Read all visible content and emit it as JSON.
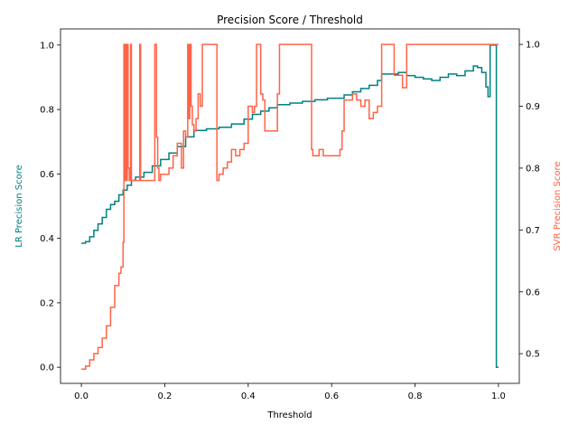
{
  "chart_data": {
    "type": "line",
    "title": "Precision Score / Threshold",
    "xlabel": "Threshold",
    "ylabel_left": "LR Precision Score",
    "ylabel_right": "SVR Precision Score",
    "xlim": [
      -0.05,
      1.05
    ],
    "ylim_left": [
      -0.05,
      1.05
    ],
    "ylim_right": [
      0.452,
      1.025
    ],
    "x_ticks": [
      0.0,
      0.2,
      0.4,
      0.6,
      0.8,
      1.0
    ],
    "y_ticks_left": [
      0.0,
      0.2,
      0.4,
      0.6,
      0.8,
      1.0
    ],
    "y_ticks_right": [
      0.5,
      0.6,
      0.7,
      0.8,
      0.9,
      1.0
    ],
    "grid": false,
    "legend": "none",
    "series": [
      {
        "axis": "left",
        "color": "#008080",
        "x": [
          0.0,
          0.01,
          0.02,
          0.03,
          0.04,
          0.05,
          0.06,
          0.07,
          0.08,
          0.09,
          0.1,
          0.11,
          0.12,
          0.13,
          0.15,
          0.17,
          0.19,
          0.21,
          0.23,
          0.25,
          0.27,
          0.3,
          0.33,
          0.36,
          0.39,
          0.41,
          0.43,
          0.45,
          0.47,
          0.5,
          0.53,
          0.56,
          0.59,
          0.61,
          0.63,
          0.65,
          0.67,
          0.69,
          0.71,
          0.72,
          0.74,
          0.76,
          0.78,
          0.8,
          0.82,
          0.84,
          0.86,
          0.88,
          0.9,
          0.92,
          0.94,
          0.95,
          0.96,
          0.97,
          0.975,
          0.98,
          0.985,
          0.99,
          0.995,
          1.0
        ],
        "values": [
          0.385,
          0.39,
          0.405,
          0.425,
          0.445,
          0.465,
          0.49,
          0.505,
          0.515,
          0.535,
          0.55,
          0.565,
          0.58,
          0.59,
          0.605,
          0.625,
          0.645,
          0.665,
          0.685,
          0.715,
          0.735,
          0.74,
          0.745,
          0.755,
          0.77,
          0.785,
          0.795,
          0.805,
          0.815,
          0.82,
          0.825,
          0.83,
          0.835,
          0.835,
          0.845,
          0.855,
          0.865,
          0.875,
          0.89,
          0.91,
          0.91,
          0.915,
          0.905,
          0.9,
          0.895,
          0.89,
          0.9,
          0.91,
          0.905,
          0.92,
          0.935,
          0.93,
          0.915,
          0.87,
          0.84,
          1.0,
          1.0,
          1.0,
          0.0,
          0.0
        ]
      },
      {
        "axis": "right",
        "color": "#ff6347",
        "x": [
          0.0,
          0.01,
          0.02,
          0.03,
          0.04,
          0.05,
          0.06,
          0.07,
          0.08,
          0.09,
          0.095,
          0.1,
          0.102,
          0.104,
          0.106,
          0.108,
          0.11,
          0.112,
          0.115,
          0.118,
          0.12,
          0.125,
          0.14,
          0.142,
          0.144,
          0.17,
          0.176,
          0.18,
          0.183,
          0.186,
          0.19,
          0.2,
          0.21,
          0.22,
          0.23,
          0.24,
          0.245,
          0.25,
          0.255,
          0.258,
          0.26,
          0.263,
          0.266,
          0.27,
          0.275,
          0.28,
          0.285,
          0.29,
          0.3,
          0.31,
          0.32,
          0.325,
          0.33,
          0.34,
          0.35,
          0.36,
          0.37,
          0.38,
          0.39,
          0.4,
          0.405,
          0.41,
          0.415,
          0.42,
          0.43,
          0.435,
          0.44,
          0.45,
          0.46,
          0.465,
          0.47,
          0.475,
          0.48,
          0.5,
          0.52,
          0.54,
          0.552,
          0.555,
          0.56,
          0.57,
          0.58,
          0.6,
          0.62,
          0.625,
          0.63,
          0.65,
          0.66,
          0.67,
          0.68,
          0.69,
          0.7,
          0.71,
          0.72,
          0.73,
          0.74,
          0.75,
          0.76,
          0.77,
          0.78,
          0.8,
          0.9,
          0.95,
          0.97,
          0.98,
          0.99,
          1.0
        ],
        "values": [
          0.475,
          0.48,
          0.49,
          0.5,
          0.51,
          0.525,
          0.545,
          0.575,
          0.61,
          0.63,
          0.64,
          0.68,
          1.0,
          0.78,
          1.0,
          0.78,
          1.0,
          0.8,
          0.78,
          1.0,
          0.78,
          0.78,
          1.0,
          0.78,
          0.78,
          0.78,
          1.0,
          0.85,
          0.8,
          0.78,
          0.79,
          0.79,
          0.8,
          0.82,
          0.84,
          0.8,
          0.86,
          0.85,
          1.0,
          0.88,
          1.0,
          0.9,
          0.87,
          0.86,
          0.88,
          0.92,
          0.9,
          1.0,
          1.0,
          1.0,
          1.0,
          0.78,
          0.79,
          0.8,
          0.81,
          0.83,
          0.82,
          0.83,
          0.84,
          0.9,
          0.9,
          0.89,
          0.9,
          1.0,
          0.92,
          0.91,
          0.86,
          0.86,
          0.86,
          0.86,
          0.92,
          1.0,
          1.0,
          1.0,
          1.0,
          1.0,
          0.83,
          0.82,
          0.82,
          0.83,
          0.82,
          0.82,
          0.83,
          0.86,
          0.91,
          0.92,
          0.91,
          0.9,
          0.91,
          0.88,
          0.89,
          0.9,
          1.0,
          1.0,
          1.0,
          0.95,
          0.95,
          0.93,
          1.0,
          1.0,
          1.0,
          1.0,
          1.0,
          1.0,
          1.0,
          1.0
        ]
      }
    ]
  }
}
